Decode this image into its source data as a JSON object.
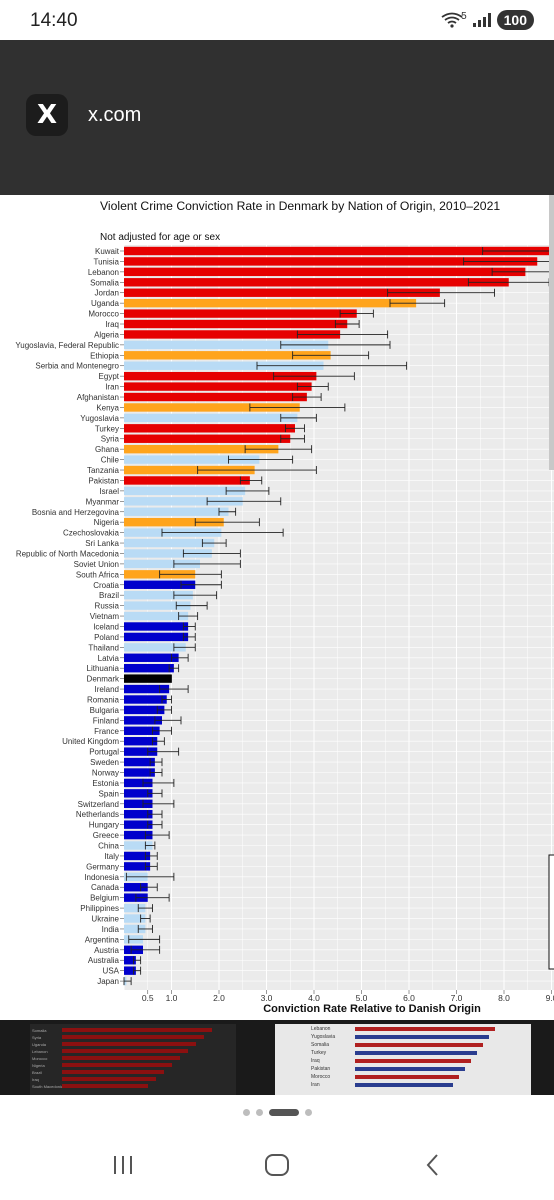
{
  "status_bar": {
    "time": "14:40",
    "wifi_badge": "5",
    "battery": "100"
  },
  "app": {
    "name": "x.com",
    "logo_letter": "X"
  },
  "chart_data": {
    "type": "bar",
    "orientation": "horizontal",
    "title": "Violent Crime Conviction Rate in Denmark by Nation of Origin, 2010–2021",
    "subtitle": "Not adjusted for age or sex",
    "xlabel": "Conviction Rate Relative to Danish Origin",
    "xlim": [
      0,
      9.0
    ],
    "xticks": [
      "0.5",
      "1.0",
      "2.0",
      "3.0",
      "4.0",
      "5.0",
      "6.0",
      "7.0",
      "8.0",
      "9.0"
    ],
    "xtick_values": [
      0.5,
      1.0,
      2.0,
      3.0,
      4.0,
      5.0,
      6.0,
      7.0,
      8.0,
      9.0
    ],
    "grid": true,
    "colors": {
      "red": "#e60000",
      "orange": "#ffa41c",
      "lightblue": "#b9dbf5",
      "blue": "#0000cc",
      "black": "#000000",
      "grid_bg": "#ebebeb"
    },
    "categories": [
      "Kuwait",
      "Tunisia",
      "Lebanon",
      "Somalia",
      "Jordan",
      "Uganda",
      "Morocco",
      "Iraq",
      "Algeria",
      "Yugoslavia, Federal Republic",
      "Ethiopia",
      "Serbia and Montenegro",
      "Egypt",
      "Iran",
      "Afghanistan",
      "Kenya",
      "Yugoslavia",
      "Turkey",
      "Syria",
      "Ghana",
      "Chile",
      "Tanzania",
      "Pakistan",
      "Israel",
      "Myanmar",
      "Bosnia and Herzegovina",
      "Nigeria",
      "Czechoslovakia",
      "Sri Lanka",
      "Republic of North Macedonia",
      "Soviet Union",
      "South Africa",
      "Croatia",
      "Brazil",
      "Russia",
      "Vietnam",
      "Iceland",
      "Poland",
      "Thailand",
      "Latvia",
      "Lithuania",
      "Denmark",
      "Ireland",
      "Romania",
      "Bulgaria",
      "Finland",
      "France",
      "United Kingdom",
      "Portugal",
      "Sweden",
      "Norway",
      "Estonia",
      "Spain",
      "Switzerland",
      "Netherlands",
      "Hungary",
      "Greece",
      "China",
      "Italy",
      "Germany",
      "Indonesia",
      "Canada",
      "Belgium",
      "Philippines",
      "Ukraine",
      "India",
      "Argentina",
      "Austria",
      "Australia",
      "USA",
      "Japan"
    ],
    "values": [
      9.05,
      8.7,
      8.45,
      8.1,
      6.65,
      6.15,
      4.9,
      4.7,
      4.55,
      4.3,
      4.35,
      4.2,
      4.05,
      3.95,
      3.85,
      3.7,
      3.65,
      3.6,
      3.5,
      3.25,
      2.85,
      2.75,
      2.65,
      2.55,
      2.5,
      2.2,
      2.1,
      2.05,
      1.9,
      1.85,
      1.6,
      1.5,
      1.5,
      1.45,
      1.4,
      1.35,
      1.35,
      1.35,
      1.3,
      1.15,
      1.05,
      1.0,
      0.95,
      0.9,
      0.85,
      0.8,
      0.75,
      0.7,
      0.7,
      0.65,
      0.65,
      0.6,
      0.6,
      0.6,
      0.6,
      0.6,
      0.6,
      0.6,
      0.55,
      0.55,
      0.5,
      0.5,
      0.5,
      0.45,
      0.45,
      0.45,
      0.4,
      0.4,
      0.25,
      0.25,
      0.05
    ],
    "error_low": [
      7.55,
      7.15,
      7.75,
      7.25,
      5.55,
      5.6,
      4.55,
      4.45,
      3.65,
      3.3,
      3.55,
      2.8,
      3.15,
      3.65,
      3.55,
      2.65,
      3.3,
      3.4,
      3.3,
      2.55,
      2.2,
      1.55,
      2.45,
      2.15,
      1.75,
      2.0,
      1.5,
      0.8,
      1.65,
      1.25,
      1.05,
      0.75,
      1.2,
      1.05,
      1.1,
      1.15,
      1.25,
      1.25,
      1.05,
      1.0,
      0.95,
      1.0,
      0.75,
      0.8,
      0.7,
      0.65,
      0.6,
      0.6,
      0.5,
      0.55,
      0.55,
      0.4,
      0.5,
      0.4,
      0.5,
      0.5,
      0.45,
      0.45,
      0.45,
      0.45,
      0.05,
      0.35,
      0.25,
      0.3,
      0.35,
      0.3,
      0.1,
      0.15,
      0.2,
      0.2,
      0.0
    ],
    "error_high": [
      9.4,
      9.15,
      9.15,
      8.95,
      7.8,
      6.75,
      5.25,
      4.95,
      5.55,
      5.6,
      5.15,
      5.95,
      4.85,
      4.3,
      4.15,
      4.65,
      4.05,
      3.8,
      3.8,
      3.95,
      3.55,
      4.05,
      2.9,
      3.05,
      3.3,
      2.35,
      2.85,
      3.35,
      2.15,
      2.45,
      2.45,
      2.05,
      2.05,
      1.95,
      1.75,
      1.55,
      1.5,
      1.5,
      1.5,
      1.35,
      1.15,
      1.0,
      1.35,
      1.0,
      1.0,
      1.2,
      1.0,
      0.85,
      1.15,
      0.8,
      0.8,
      1.05,
      0.8,
      1.05,
      0.8,
      0.8,
      0.95,
      0.65,
      0.7,
      0.7,
      1.05,
      0.7,
      0.95,
      0.6,
      0.55,
      0.6,
      0.75,
      0.75,
      0.35,
      0.35,
      0.15
    ],
    "bar_colors": [
      "red",
      "red",
      "red",
      "red",
      "red",
      "orange",
      "red",
      "red",
      "red",
      "lightblue",
      "orange",
      "lightblue",
      "red",
      "red",
      "red",
      "orange",
      "lightblue",
      "red",
      "red",
      "orange",
      "lightblue",
      "orange",
      "red",
      "lightblue",
      "lightblue",
      "lightblue",
      "orange",
      "lightblue",
      "lightblue",
      "lightblue",
      "lightblue",
      "orange",
      "blue",
      "lightblue",
      "lightblue",
      "lightblue",
      "blue",
      "blue",
      "lightblue",
      "blue",
      "blue",
      "black",
      "blue",
      "blue",
      "blue",
      "blue",
      "blue",
      "blue",
      "blue",
      "blue",
      "blue",
      "blue",
      "blue",
      "blue",
      "blue",
      "blue",
      "blue",
      "lightblue",
      "blue",
      "blue",
      "lightblue",
      "blue",
      "blue",
      "lightblue",
      "lightblue",
      "lightblue",
      "lightblue",
      "blue",
      "blue",
      "blue",
      "lightblue"
    ]
  },
  "lower_strip": {
    "left_labels": [
      "Somalia",
      "Syria",
      "Uganda",
      "Lebanon",
      "Morocco",
      "Nigeria",
      "Brazil",
      "Iraq",
      "South Macedonia"
    ],
    "right_labels": [
      "Lebanon",
      "Yugoslavia",
      "Somalia",
      "Turkey",
      "Iraq",
      "Pakistan",
      "Morocco",
      "Iran"
    ]
  },
  "pager": {
    "count": 4,
    "active": 2
  },
  "nav": {
    "recents": "recents",
    "home": "home",
    "back": "back"
  }
}
